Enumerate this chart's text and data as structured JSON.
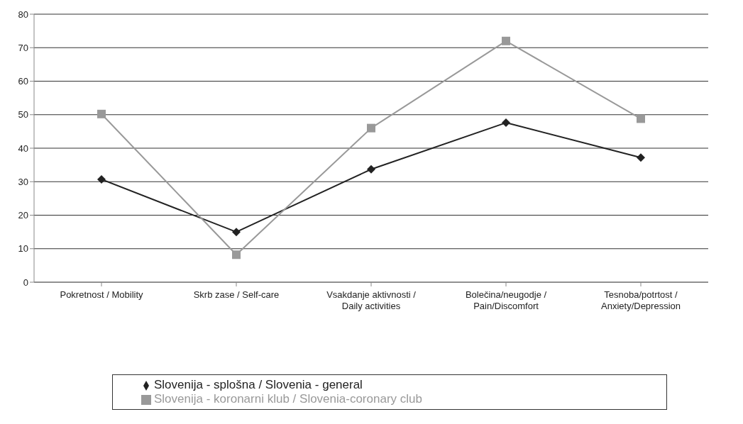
{
  "chart_data": {
    "type": "line",
    "categories": [
      "Pokretnost / Mobility",
      "Skrb zase / Self-care",
      "Vsakdanje aktivnosti / Daily activities",
      "Bolečina/neugodje / Pain/Discomfort",
      "Tesnoba/potrtost / Anxiety/Depression"
    ],
    "series": [
      {
        "name": "Slovenija - splošna / Slovenia - general",
        "color": "#222222",
        "marker": "diamond",
        "values": [
          30.7,
          15,
          33.7,
          47.6,
          37.2
        ]
      },
      {
        "name": "Slovenija - koronarni klub / Slovenia-coronary club",
        "color": "#999999",
        "marker": "square",
        "values": [
          50.2,
          8.2,
          46,
          72,
          48.8
        ]
      }
    ],
    "ylim": [
      0,
      80
    ],
    "yticks": [
      0,
      10,
      20,
      30,
      40,
      50,
      60,
      70,
      80
    ],
    "grid": "y",
    "legend": "bottom"
  }
}
